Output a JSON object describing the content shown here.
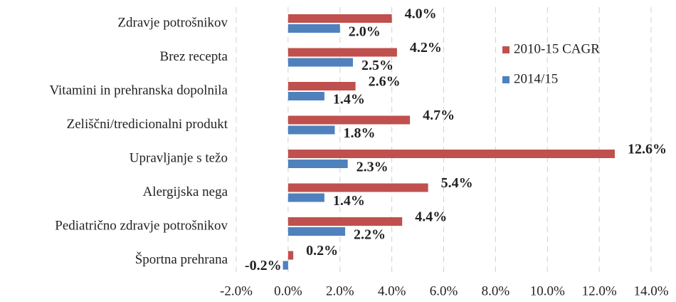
{
  "chart_data": {
    "type": "hbar",
    "categories": [
      "Zdravje potrošnikov",
      "Brez recepta",
      "Vitamini in prehranska dopolnila",
      "Zeliščni/tredicionalni produkt",
      "Upravljanje s težo",
      "Alergijska nega",
      "Pediatrično zdravje potrošnikov",
      "Športna prehrana"
    ],
    "series": [
      {
        "name": "2010-15 CAGR",
        "color": "#c0504d",
        "values": [
          4.0,
          4.2,
          2.6,
          4.7,
          12.6,
          5.4,
          4.4,
          0.2
        ],
        "value_labels": [
          "4.0%",
          "4.2%",
          "2.6%",
          "4.7%",
          "12.6%",
          "5.4%",
          "4.4%",
          "0.2%"
        ]
      },
      {
        "name": "2014/15",
        "color": "#4f81bd",
        "values": [
          2.0,
          2.5,
          1.4,
          1.8,
          2.3,
          1.4,
          2.2,
          -0.2
        ],
        "value_labels": [
          "2.0%",
          "2.5%",
          "1.4%",
          "1.8%",
          "2.3%",
          "1.4%",
          "2.2%",
          "-0.2%"
        ]
      }
    ],
    "xlim": [
      -2,
      14
    ],
    "xticks": [
      {
        "value": -2,
        "label": "-2.0%"
      },
      {
        "value": 0,
        "label": "0.0%"
      },
      {
        "value": 2,
        "label": "2.0%"
      },
      {
        "value": 4,
        "label": "4.0%"
      },
      {
        "value": 6,
        "label": "6.0%"
      },
      {
        "value": 8,
        "label": "8.0%"
      },
      {
        "value": 10,
        "label": "10.0%"
      },
      {
        "value": 12,
        "label": "12.0%"
      },
      {
        "value": 14,
        "label": "14.0%"
      }
    ],
    "grid": true,
    "legend": "upper right"
  }
}
